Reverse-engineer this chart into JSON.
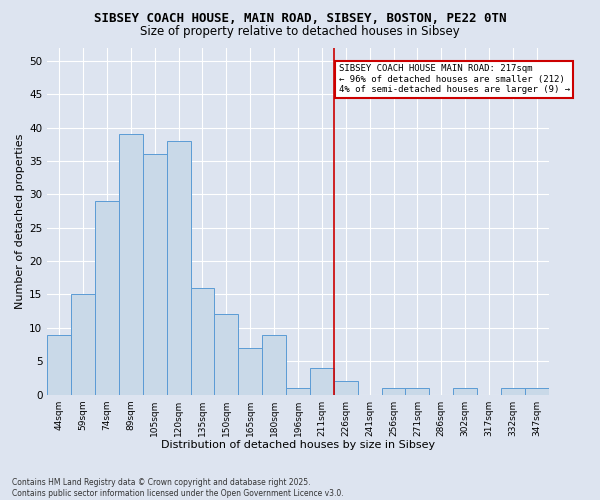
{
  "title_line1": "SIBSEY COACH HOUSE, MAIN ROAD, SIBSEY, BOSTON, PE22 0TN",
  "title_line2": "Size of property relative to detached houses in Sibsey",
  "xlabel": "Distribution of detached houses by size in Sibsey",
  "ylabel": "Number of detached properties",
  "footer_line1": "Contains HM Land Registry data © Crown copyright and database right 2025.",
  "footer_line2": "Contains public sector information licensed under the Open Government Licence v3.0.",
  "bins": [
    "44sqm",
    "59sqm",
    "74sqm",
    "89sqm",
    "105sqm",
    "120sqm",
    "135sqm",
    "150sqm",
    "165sqm",
    "180sqm",
    "196sqm",
    "211sqm",
    "226sqm",
    "241sqm",
    "256sqm",
    "271sqm",
    "286sqm",
    "302sqm",
    "317sqm",
    "332sqm",
    "347sqm"
  ],
  "values": [
    9,
    15,
    29,
    39,
    36,
    38,
    16,
    12,
    7,
    9,
    1,
    4,
    2,
    0,
    1,
    1,
    0,
    1,
    0,
    1,
    1
  ],
  "bar_color": "#c9d9e8",
  "bar_edge_color": "#5b9bd5",
  "reference_line_x": 11.5,
  "reference_line_color": "#cc0000",
  "annotation_text": "SIBSEY COACH HOUSE MAIN ROAD: 217sqm\n← 96% of detached houses are smaller (212)\n4% of semi-detached houses are larger (9) →",
  "annotation_box_color": "#cc0000",
  "ylim": [
    0,
    52
  ],
  "yticks": [
    0,
    5,
    10,
    15,
    20,
    25,
    30,
    35,
    40,
    45,
    50
  ],
  "bg_color": "#dde4f0",
  "plot_bg_color": "#dde4f0",
  "grid_color": "#ffffff",
  "title_fontsize": 9,
  "subtitle_fontsize": 8.5
}
